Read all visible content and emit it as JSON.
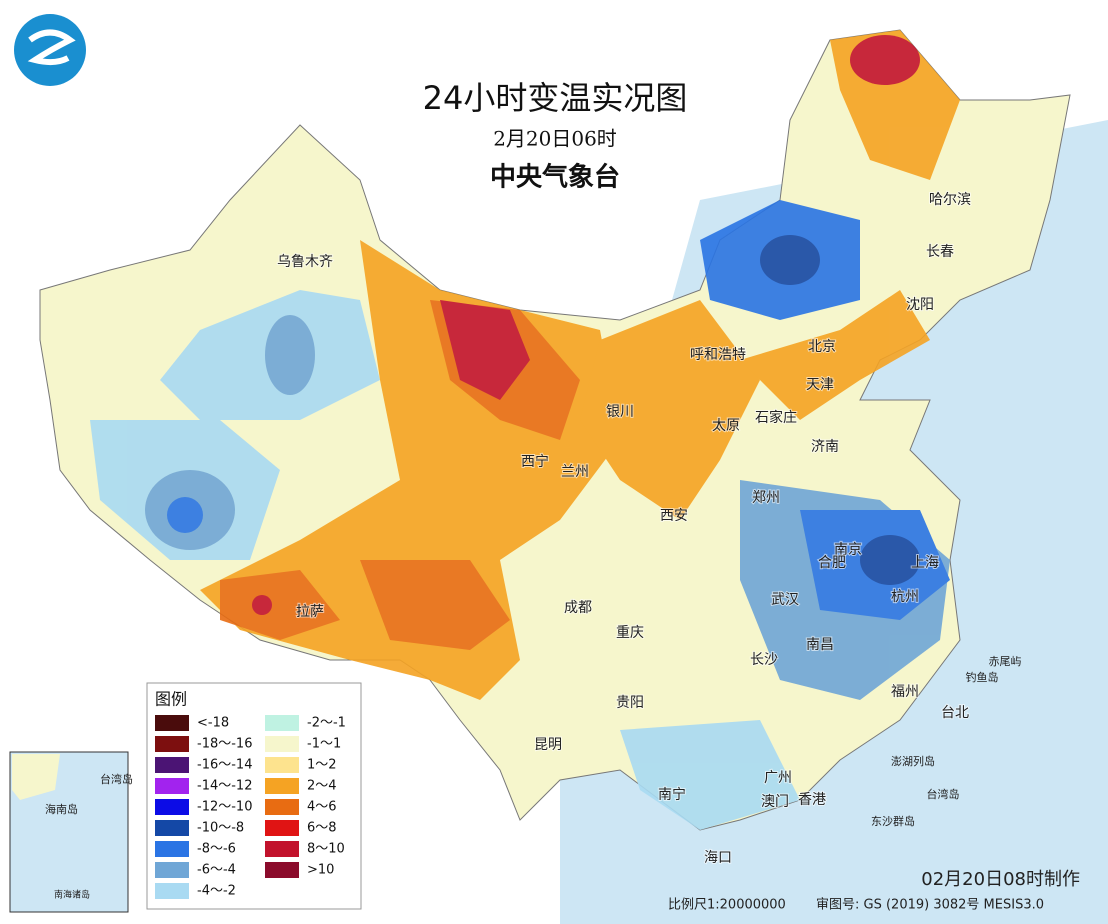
{
  "header": {
    "title": "24小时变温实况图",
    "time": "2月20日06时",
    "issuer": "中央气象台"
  },
  "legend": {
    "title": "图例",
    "items": [
      {
        "label": "<-18",
        "color": "#4a0c0c"
      },
      {
        "label": "-18～-16",
        "color": "#7d0f0f"
      },
      {
        "label": "-16～-14",
        "color": "#4b1474"
      },
      {
        "label": "-14～-12",
        "color": "#a223ee"
      },
      {
        "label": "-12～-10",
        "color": "#0c0ce6"
      },
      {
        "label": "-10～-8",
        "color": "#1448a6"
      },
      {
        "label": "-8～-6",
        "color": "#2a74e4"
      },
      {
        "label": "-6～-4",
        "color": "#6fa6d6"
      },
      {
        "label": "-4～-2",
        "color": "#a9daf2"
      },
      {
        "label": "-2～-1",
        "color": "#bff2e2"
      },
      {
        "label": "-1～1",
        "color": "#f6f6cc"
      },
      {
        "label": "1～2",
        "color": "#fde38e"
      },
      {
        "label": "2～4",
        "color": "#f5a323"
      },
      {
        "label": "4～6",
        "color": "#e86c12"
      },
      {
        "label": "6～8",
        "color": "#e01414"
      },
      {
        "label": "8～10",
        "color": "#c2122c"
      },
      {
        "label": ">10",
        "color": "#8b0b2b"
      }
    ]
  },
  "cities": [
    "乌鲁木齐",
    "呼和浩特",
    "北京",
    "天津",
    "沈阳",
    "长春",
    "哈尔滨",
    "银川",
    "太原",
    "石家庄",
    "济南",
    "西宁",
    "兰州",
    "郑州",
    "西安",
    "南京",
    "合肥",
    "上海",
    "杭州",
    "武汉",
    "成都",
    "拉萨",
    "重庆",
    "长沙",
    "南昌",
    "贵阳",
    "福州",
    "台北",
    "昆明",
    "广州",
    "澳门",
    "香港",
    "南宁",
    "海口"
  ],
  "islands": [
    "赤尾屿",
    "钓鱼岛",
    "澎湖列岛",
    "台湾岛",
    "东沙群岛"
  ],
  "inset": {
    "labels": [
      "台湾岛",
      "海南岛"
    ],
    "caption": "南海诸岛"
  },
  "footer": {
    "made": "02月20日08时制作",
    "scale": "比例尺1:20000000",
    "approval": "审图号: GS (2019) 3082号 MESIS3.0"
  }
}
